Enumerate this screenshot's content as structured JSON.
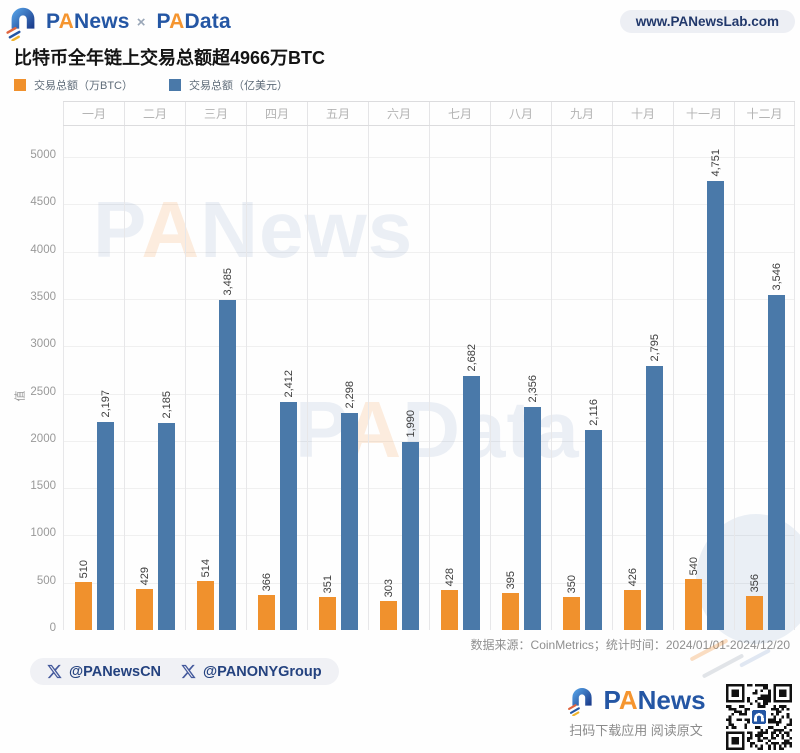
{
  "header": {
    "logo_primary": {
      "part1": "P",
      "part2": "A",
      "part3": "News"
    },
    "separator": "×",
    "logo_secondary": {
      "part1": "P",
      "part2": "A",
      "part3": "Data"
    },
    "website": "www.PANewsLab.com"
  },
  "title": "比特币全年链上交易总额超4966万BTC",
  "chart_data": {
    "type": "bar",
    "title": "比特币全年链上交易总额超4966万BTC",
    "categories": [
      "一月",
      "二月",
      "三月",
      "四月",
      "五月",
      "六月",
      "七月",
      "八月",
      "九月",
      "十月",
      "十一月",
      "十二月"
    ],
    "series": [
      {
        "name": "交易总额（万BTC）",
        "color": "#F0912D",
        "values": [
          510,
          429,
          514,
          366,
          351,
          303,
          428,
          395,
          350,
          426,
          540,
          356
        ]
      },
      {
        "name": "交易总额（亿美元）",
        "color": "#4A79A9",
        "values": [
          2197,
          2185,
          3485,
          2412,
          2298,
          1990,
          2682,
          2356,
          2116,
          2795,
          4751,
          3546
        ]
      }
    ],
    "xlabel": "",
    "ylabel": "值",
    "ylim": [
      0,
      5000
    ],
    "ytick_step": 500,
    "grid": true,
    "legend_position": "top-left",
    "bar_label_rotation": -90,
    "source_note": "数据来源：CoinMetrics；统计时间：2024/01/01-2024/12/20"
  },
  "watermarks": [
    {
      "part1": "P",
      "part2": "A",
      "part3": "News"
    },
    {
      "part1": "P",
      "part2": "A",
      "part3": "Data"
    }
  ],
  "social": {
    "handles": [
      "@PANewsCN",
      "@PANONYGroup"
    ]
  },
  "bottom": {
    "logo": {
      "part1": "P",
      "part2": "A",
      "part3": "News"
    },
    "caption": "扫码下载应用 阅读原文"
  }
}
